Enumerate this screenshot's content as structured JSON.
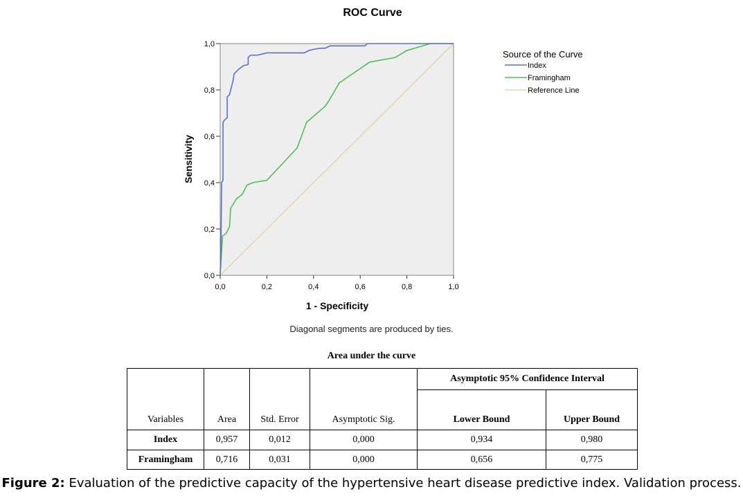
{
  "chart_data": {
    "type": "line",
    "title": "ROC Curve",
    "xlabel": "1 - Specificity",
    "ylabel": "Sensitivity",
    "xlim": [
      0,
      1
    ],
    "ylim": [
      0,
      1
    ],
    "xticks": [
      "0,0",
      "0,2",
      "0,4",
      "0,6",
      "0,8",
      "1,0"
    ],
    "yticks": [
      "0,0",
      "0,2",
      "0,4",
      "0,6",
      "0,8",
      "1,0"
    ],
    "legend_title": "Source of the Curve",
    "legend_position": "right",
    "series": [
      {
        "name": "Index",
        "color": "#5b6fc4",
        "points": [
          [
            0,
            0
          ],
          [
            0.003,
            0.1
          ],
          [
            0.006,
            0.4
          ],
          [
            0.012,
            0.41
          ],
          [
            0.012,
            0.66
          ],
          [
            0.018,
            0.67
          ],
          [
            0.03,
            0.68
          ],
          [
            0.03,
            0.77
          ],
          [
            0.04,
            0.78
          ],
          [
            0.055,
            0.84
          ],
          [
            0.06,
            0.87
          ],
          [
            0.08,
            0.89
          ],
          [
            0.1,
            0.905
          ],
          [
            0.12,
            0.91
          ],
          [
            0.12,
            0.94
          ],
          [
            0.13,
            0.95
          ],
          [
            0.16,
            0.95
          ],
          [
            0.2,
            0.96
          ],
          [
            0.36,
            0.96
          ],
          [
            0.38,
            0.97
          ],
          [
            0.4,
            0.975
          ],
          [
            0.43,
            0.98
          ],
          [
            0.45,
            0.98
          ],
          [
            0.47,
            0.99
          ],
          [
            0.62,
            0.99
          ],
          [
            0.63,
            1
          ],
          [
            1,
            1
          ]
        ]
      },
      {
        "name": "Framingham",
        "color": "#4cbf54",
        "points": [
          [
            0,
            0
          ],
          [
            0.003,
            0.05
          ],
          [
            0.01,
            0.17
          ],
          [
            0.025,
            0.18
          ],
          [
            0.04,
            0.21
          ],
          [
            0.045,
            0.29
          ],
          [
            0.07,
            0.33
          ],
          [
            0.095,
            0.35
          ],
          [
            0.115,
            0.39
          ],
          [
            0.14,
            0.4
          ],
          [
            0.2,
            0.41
          ],
          [
            0.33,
            0.55
          ],
          [
            0.37,
            0.66
          ],
          [
            0.45,
            0.73
          ],
          [
            0.47,
            0.76
          ],
          [
            0.51,
            0.83
          ],
          [
            0.64,
            0.92
          ],
          [
            0.75,
            0.94
          ],
          [
            0.8,
            0.97
          ],
          [
            0.9,
            1
          ],
          [
            1,
            1
          ]
        ]
      },
      {
        "name": "Reference Line",
        "color": "#e0d8a8",
        "points": [
          [
            0,
            0
          ],
          [
            1,
            1
          ]
        ]
      }
    ],
    "note": "Diagonal segments are produced by ties."
  },
  "table": {
    "title": "Area under the curve",
    "group_header": "Asymptotic 95% Confidence Interval",
    "headers": [
      "Variables",
      "Area",
      "Std. Error",
      "Asymptotic Sig.",
      "Lower Bound",
      "Upper Bound"
    ],
    "rows": [
      [
        "Index",
        "0,957",
        "0,012",
        "0,000",
        "0,934",
        "0,980"
      ],
      [
        "Framingham",
        "0,716",
        "0,031",
        "0,000",
        "0,656",
        "0,775"
      ]
    ]
  },
  "caption": {
    "label": "Figure 2:",
    "text": " Evaluation of the predictive capacity of the hypertensive heart disease predictive index. Validation process."
  }
}
